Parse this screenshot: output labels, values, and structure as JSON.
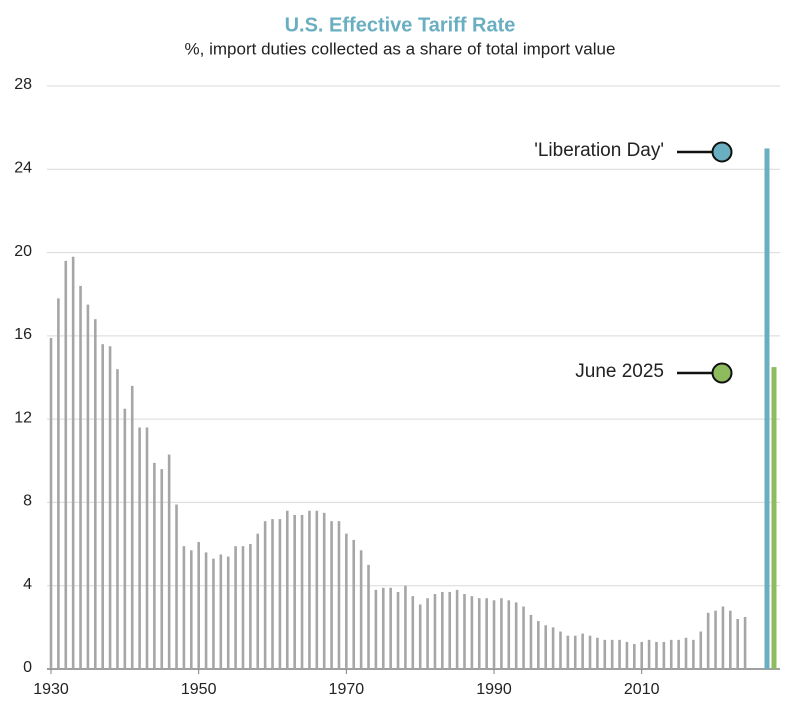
{
  "chart_data": {
    "type": "bar",
    "title": "U.S. Effective Tariff Rate",
    "subtitle": "%, import duties collected as a share of total import value",
    "x": [
      1930,
      1931,
      1932,
      1933,
      1934,
      1935,
      1936,
      1937,
      1938,
      1939,
      1940,
      1941,
      1942,
      1943,
      1944,
      1945,
      1946,
      1947,
      1948,
      1949,
      1950,
      1951,
      1952,
      1953,
      1954,
      1955,
      1956,
      1957,
      1958,
      1959,
      1960,
      1961,
      1962,
      1963,
      1964,
      1965,
      1966,
      1967,
      1968,
      1969,
      1970,
      1971,
      1972,
      1973,
      1974,
      1975,
      1976,
      1977,
      1978,
      1979,
      1980,
      1981,
      1982,
      1983,
      1984,
      1985,
      1986,
      1987,
      1988,
      1989,
      1990,
      1991,
      1992,
      1993,
      1994,
      1995,
      1996,
      1997,
      1998,
      1999,
      2000,
      2001,
      2002,
      2003,
      2004,
      2005,
      2006,
      2007,
      2008,
      2009,
      2010,
      2011,
      2012,
      2013,
      2014,
      2015,
      2016,
      2017,
      2018,
      2019,
      2020,
      2021,
      2022,
      2023,
      2024
    ],
    "values": [
      15.9,
      17.8,
      19.6,
      19.8,
      18.4,
      17.5,
      16.8,
      15.6,
      15.5,
      14.4,
      12.5,
      13.6,
      11.6,
      11.6,
      9.9,
      9.6,
      10.3,
      7.9,
      5.9,
      5.7,
      6.1,
      5.6,
      5.3,
      5.5,
      5.4,
      5.9,
      5.9,
      6.0,
      6.5,
      7.1,
      7.2,
      7.2,
      7.6,
      7.4,
      7.4,
      7.6,
      7.6,
      7.5,
      7.1,
      7.1,
      6.5,
      6.2,
      5.7,
      5.0,
      3.8,
      3.9,
      3.9,
      3.7,
      4.0,
      3.5,
      3.1,
      3.4,
      3.6,
      3.7,
      3.7,
      3.8,
      3.6,
      3.5,
      3.4,
      3.4,
      3.3,
      3.4,
      3.3,
      3.2,
      3.0,
      2.6,
      2.3,
      2.1,
      2.0,
      1.8,
      1.6,
      1.6,
      1.7,
      1.6,
      1.5,
      1.4,
      1.4,
      1.4,
      1.3,
      1.2,
      1.3,
      1.4,
      1.3,
      1.3,
      1.4,
      1.4,
      1.5,
      1.4,
      1.8,
      2.7,
      2.8,
      3.0,
      2.8,
      2.4,
      2.5
    ],
    "color": "#a6a6a6",
    "highlights": [
      {
        "label": "'Liberation Day'",
        "value": 25,
        "color": "#6aaec2"
      },
      {
        "label": "June 2025",
        "value": 14.5,
        "color": "#8dbb5e"
      }
    ],
    "xlim": [
      1930,
      2029
    ],
    "xticks": [
      1930,
      1950,
      1970,
      1990,
      2010
    ],
    "ylim": [
      0,
      28
    ],
    "yticks": [
      0,
      4,
      8,
      12,
      16,
      20,
      24,
      28
    ],
    "grid": true
  }
}
